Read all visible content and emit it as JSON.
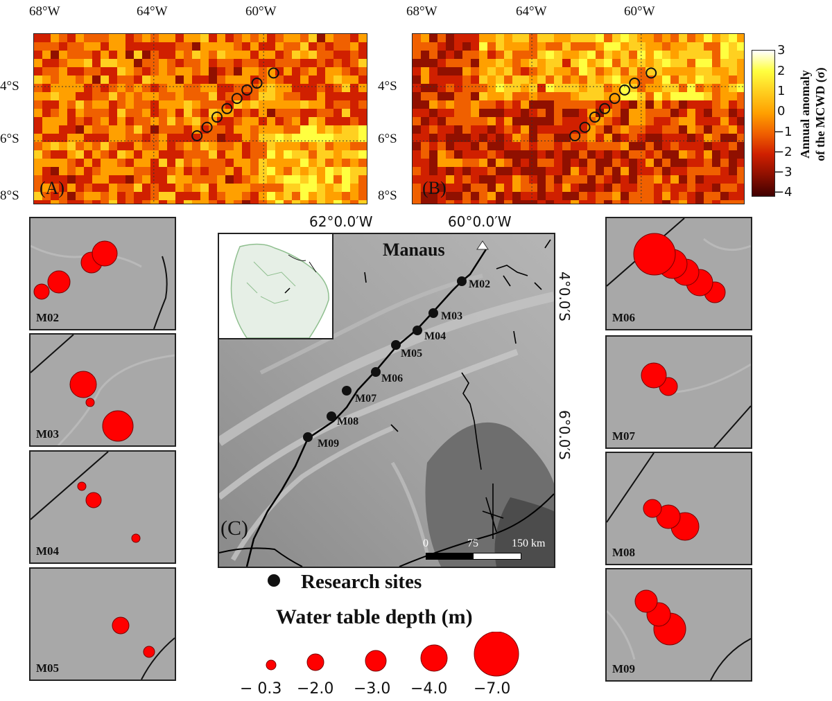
{
  "top_axis": {
    "lon_labels_a": [
      "68°W",
      "64°W",
      "60°W"
    ],
    "lon_labels_b": [
      "68°W",
      "64°W",
      "60°W"
    ],
    "lat_labels": [
      "4°S",
      "6°S",
      "8°S"
    ]
  },
  "panels": {
    "a_label": "(A)",
    "b_label": "(B)",
    "c_label": "(C)"
  },
  "colorbar": {
    "title_line1": "Annual anomaly",
    "title_line2": "of the MCWD (σ)",
    "ticks": [
      "3",
      "2",
      "1",
      "0",
      "−1",
      "−2",
      "−3",
      "−4"
    ],
    "colors": [
      "#ffffff",
      "#ffff40",
      "#ffd020",
      "#ffa000",
      "#f06000",
      "#d02000",
      "#901000",
      "#400000"
    ]
  },
  "main_map": {
    "lon_labels": [
      "62°0.0′W",
      "60°0.0′W"
    ],
    "lat_labels": [
      "4°0.0′S",
      "6°0.0′S"
    ],
    "city": "Manaus",
    "sites": [
      {
        "id": "M02"
      },
      {
        "id": "M03"
      },
      {
        "id": "M04"
      },
      {
        "id": "M05"
      },
      {
        "id": "M06"
      },
      {
        "id": "M07"
      },
      {
        "id": "M08"
      },
      {
        "id": "M09"
      }
    ],
    "scale": {
      "labels": [
        "0",
        "75",
        "150 km"
      ]
    }
  },
  "insets_left": [
    {
      "id": "M02"
    },
    {
      "id": "M03"
    },
    {
      "id": "M04"
    },
    {
      "id": "M05"
    }
  ],
  "insets_right": [
    {
      "id": "M06"
    },
    {
      "id": "M07"
    },
    {
      "id": "M08"
    },
    {
      "id": "M09"
    }
  ],
  "legend": {
    "sites_label": "Research sites",
    "depth_title": "Water table depth (m)",
    "depth_values": [
      "− 0.3",
      "−2.0",
      "−3.0",
      "−4.0",
      "−7.0"
    ],
    "circle_color": "#ff0000"
  }
}
